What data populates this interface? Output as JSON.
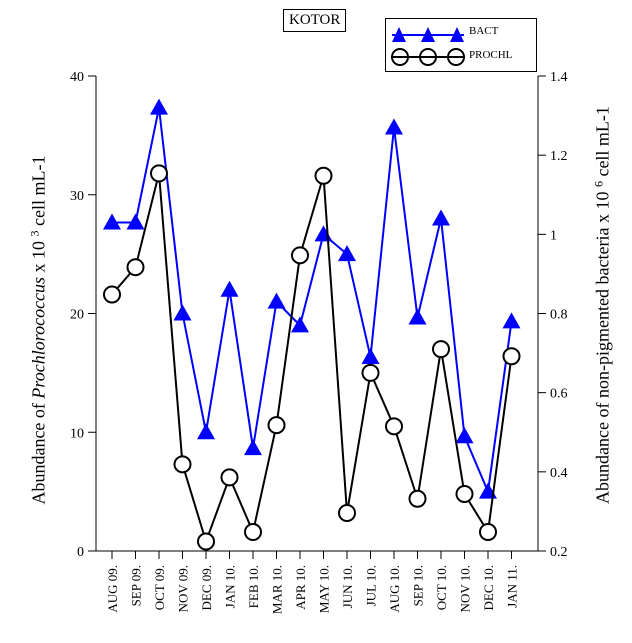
{
  "chart_data": {
    "type": "line",
    "title": "KOTOR",
    "categories": [
      "AUG 09.",
      "SEP 09.",
      "OCT 09.",
      "NOV 09.",
      "DEC 09.",
      "JAN 10.",
      "FEB 10.",
      "MAR 10.",
      "APR 10.",
      "MAY 10.",
      "JUN 10.",
      "JUL 10.",
      "AUG 10.",
      "SEP 10.",
      "OCT 10.",
      "NOV 10.",
      "DEC 10.",
      "JAN 11."
    ],
    "ylabel_left_prefix": "Abundance of ",
    "ylabel_left_italic": "Prochlorococcus",
    "ylabel_left_mid": " x 10 ",
    "ylabel_left_exp": "3",
    "ylabel_left_suffix": " cell mL-1",
    "ylabel_right_prefix": "Abundance of non-pigmented bacteria x 10 ",
    "ylabel_right_exp": "6",
    "ylabel_right_suffix": " cell mL-1",
    "ylim_left": [
      0,
      40
    ],
    "yticks_left": [
      0,
      10,
      20,
      30,
      40
    ],
    "ylim_right": [
      0.2,
      1.4
    ],
    "yticks_right": [
      0.2,
      0.4,
      0.6,
      0.8,
      1,
      1.2,
      1.4
    ],
    "series": [
      {
        "name": "BACT",
        "axis": "right",
        "color": "#0000ff",
        "marker": "triangle",
        "values": [
          1.03,
          1.03,
          1.32,
          0.8,
          0.5,
          0.86,
          0.46,
          0.83,
          0.77,
          1.0,
          0.95,
          0.69,
          1.27,
          0.79,
          1.04,
          0.49,
          0.35,
          0.78
        ]
      },
      {
        "name": "PROCHL",
        "axis": "left",
        "color": "#000000",
        "marker": "circle",
        "values": [
          21.6,
          23.9,
          31.8,
          7.3,
          0.8,
          6.2,
          1.6,
          10.6,
          24.9,
          31.6,
          3.2,
          15.0,
          10.5,
          4.4,
          17.0,
          4.8,
          1.6,
          16.4
        ]
      }
    ],
    "legend_position": "top-right"
  }
}
